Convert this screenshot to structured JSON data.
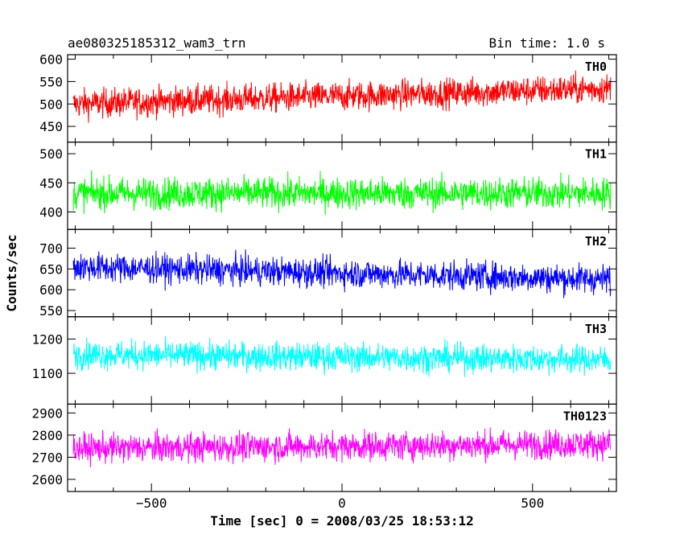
{
  "chart_data": {
    "type": "line",
    "title_left": "ae080325185312_wam3_trn",
    "title_right": "Bin time: 1.0 s",
    "xlabel": "Time [sec] 0 = 2008/03/25 18:53:12",
    "ylabel": "Counts/sec",
    "xlim": [
      -720,
      720
    ],
    "xticks": [
      -500,
      0,
      500
    ],
    "x_step": 1.0,
    "panels": [
      {
        "name": "TH0",
        "color": "#ff0000",
        "ylim": [
          415,
          610
        ],
        "yticks": [
          450,
          500,
          550,
          600
        ],
        "mean_start": 500,
        "mean_end": 535,
        "amplitude": 30
      },
      {
        "name": "TH1",
        "color": "#00ff00",
        "ylim": [
          370,
          520
        ],
        "yticks": [
          400,
          450,
          500
        ],
        "mean_start": 432,
        "mean_end": 432,
        "amplitude": 25
      },
      {
        "name": "TH2",
        "color": "#0000ff",
        "ylim": [
          535,
          745
        ],
        "yticks": [
          550,
          600,
          650,
          700
        ],
        "mean_start": 655,
        "mean_end": 625,
        "amplitude": 32
      },
      {
        "name": "TH3",
        "color": "#00ffff",
        "ylim": [
          1010,
          1265
        ],
        "yticks": [
          1100,
          1200
        ],
        "mean_start": 1155,
        "mean_end": 1140,
        "amplitude": 38
      },
      {
        "name": "TH0123",
        "color": "#ff00ff",
        "ylim": [
          2545,
          2940
        ],
        "yticks": [
          2600,
          2700,
          2800,
          2900
        ],
        "mean_start": 2740,
        "mean_end": 2760,
        "amplitude": 60
      }
    ]
  }
}
